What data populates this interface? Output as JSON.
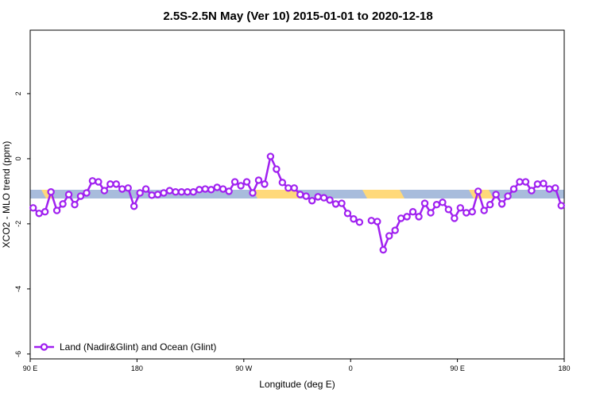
{
  "chart_data": {
    "type": "line",
    "title": "2.5S-2.5N May (Ver 10)   2015-01-01 to 2020-12-18",
    "x_label": "Longitude (deg E)",
    "y_label": "XCO2 - MLO trend (ppm)",
    "xlim": [
      90,
      540
    ],
    "ylim": [
      -6.15,
      3.95
    ],
    "xticks": [
      {
        "value": 90,
        "label": "90 E"
      },
      {
        "value": 180,
        "label": "180"
      },
      {
        "value": 270,
        "label": "90 W"
      },
      {
        "value": 360,
        "label": "0"
      },
      {
        "value": 450,
        "label": "90 E"
      },
      {
        "value": 540,
        "label": "180"
      }
    ],
    "yticks": [
      -6,
      -4,
      -2,
      0,
      2
    ],
    "x": [
      92.5,
      97.5,
      102.5,
      107.5,
      112.5,
      117.5,
      122.5,
      127.5,
      132.5,
      137.5,
      142.5,
      147.5,
      152.5,
      157.5,
      162.5,
      167.5,
      172.5,
      177.5,
      182.5,
      187.5,
      192.5,
      197.5,
      202.5,
      207.5,
      212.5,
      217.5,
      222.5,
      227.5,
      232.5,
      237.5,
      242.5,
      247.5,
      252.5,
      257.5,
      262.5,
      267.5,
      272.5,
      277.5,
      282.5,
      287.5,
      292.5,
      297.5,
      302.5,
      307.5,
      312.5,
      317.5,
      322.5,
      327.5,
      332.5,
      337.5,
      342.5,
      347.5,
      352.5,
      357.5,
      362.5,
      367.5,
      372.5,
      377.5,
      382.5,
      387.5,
      392.5,
      397.5,
      402.5,
      407.5,
      412.5,
      417.5,
      422.5,
      427.5,
      432.5,
      437.5,
      442.5,
      447.5,
      452.5,
      457.5,
      462.5,
      467.5,
      472.5,
      477.5,
      482.5,
      487.5,
      492.5,
      497.5,
      502.5,
      507.5,
      512.5,
      517.5,
      522.5,
      527.5,
      532.5,
      537.5
    ],
    "series": [
      {
        "name": "Land (Nadir&Glint) and Ocean (Glint)",
        "color": "#a020f0",
        "values": [
          -1.51,
          -1.68,
          -1.63,
          -1.02,
          -1.59,
          -1.39,
          -1.1,
          -1.41,
          -1.15,
          -1.05,
          -0.68,
          -0.71,
          -0.98,
          -0.78,
          -0.78,
          -0.93,
          -0.9,
          -1.46,
          -1.05,
          -0.93,
          -1.12,
          -1.1,
          -1.05,
          -0.98,
          -1.02,
          -1.02,
          -1.02,
          -1.02,
          -0.95,
          -0.93,
          -0.95,
          -0.88,
          -0.93,
          -1.0,
          -0.71,
          -0.83,
          -0.71,
          -1.05,
          -0.66,
          -0.78,
          0.07,
          -0.32,
          -0.73,
          -0.9,
          -0.9,
          -1.1,
          -1.15,
          -1.29,
          -1.17,
          -1.2,
          -1.27,
          -1.39,
          -1.37,
          -1.68,
          -1.85,
          -1.95,
          null,
          -1.9,
          -1.93,
          -2.8,
          -2.37,
          -2.2,
          -1.83,
          -1.78,
          -1.63,
          -1.78,
          -1.37,
          -1.66,
          -1.41,
          -1.34,
          -1.56,
          -1.83,
          -1.51,
          -1.66,
          -1.63,
          -1.0,
          -1.59,
          -1.41,
          -1.1,
          -1.39,
          -1.15,
          -0.93,
          -0.71,
          -0.71,
          -0.98,
          -0.78,
          -0.76,
          -0.93,
          -0.9,
          -1.44
        ]
      }
    ]
  }
}
